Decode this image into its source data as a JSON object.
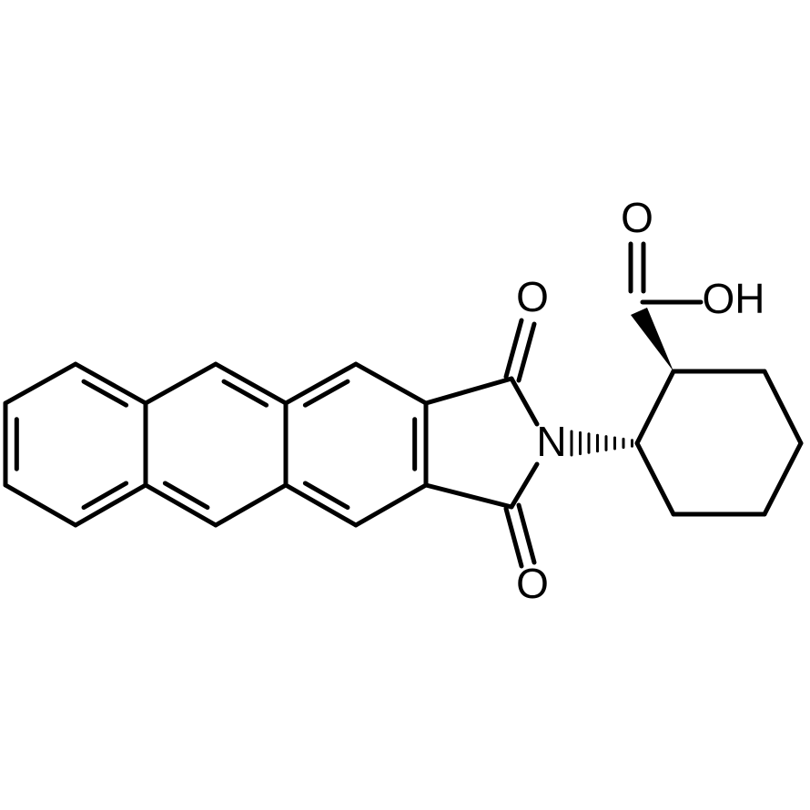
{
  "atoms": [
    {
      "label": "O"
    },
    {
      "label": "N"
    },
    {
      "label": "O"
    },
    {
      "label": "O"
    },
    {
      "label": "OH"
    }
  ]
}
